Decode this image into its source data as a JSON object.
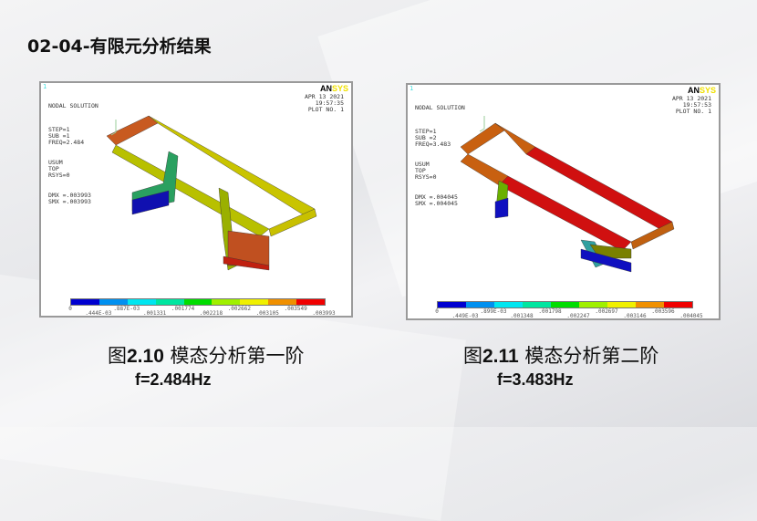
{
  "slide": {
    "title": "02-04-有限元分析结果"
  },
  "legend_colors": [
    "#0000d0",
    "#0090f0",
    "#00e6f0",
    "#00e6a0",
    "#00dd00",
    "#a0f000",
    "#f0f000",
    "#f09000",
    "#f00000"
  ],
  "figures": [
    {
      "window_number": "1",
      "logo_an": "AN",
      "logo_sys": "SYS",
      "info": [
        "NODAL SOLUTION",
        "STEP=1",
        "SUB =1",
        "FREQ=2.484",
        "USUM",
        "TOP",
        "RSYS=0",
        "DMX =.003993",
        "SMX =.003993"
      ],
      "date": "APR 13 2021",
      "time": "19:57:35",
      "plot_no": "PLOT NO.   1",
      "legend_labels": [
        "0",
        ".444E-03",
        ".887E-03",
        ".001331",
        ".001774",
        ".002218",
        ".002662",
        ".003105",
        ".003549",
        ".003993"
      ],
      "caption_prefix": "图",
      "caption_num": "2.10",
      "caption_text": " 模态分析第一阶",
      "frequency": "f=2.484Hz"
    },
    {
      "window_number": "1",
      "logo_an": "AN",
      "logo_sys": "SYS",
      "info": [
        "NODAL SOLUTION",
        "STEP=1",
        "SUB =2",
        "FREQ=3.483",
        "USUM",
        "TOP",
        "RSYS=0",
        "DMX =.004045",
        "SMX =.004045"
      ],
      "date": "APR 13 2021",
      "time": "19:57:53",
      "plot_no": "PLOT NO.   1",
      "legend_labels": [
        "0",
        ".449E-03",
        ".899E-03",
        ".001348",
        ".001798",
        ".002247",
        ".002697",
        ".003146",
        ".003596",
        ".004045"
      ],
      "caption_prefix": "图",
      "caption_num": "2.11",
      "caption_text": " 模态分析第二阶",
      "frequency": "f=3.483Hz"
    }
  ]
}
